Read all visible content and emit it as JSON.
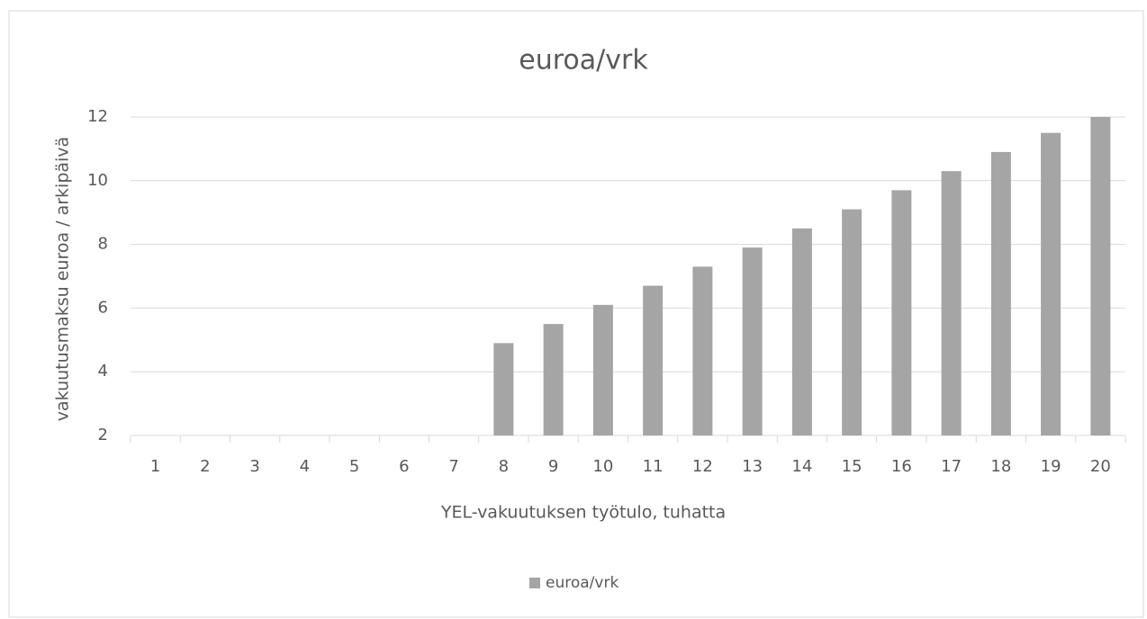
{
  "chart_data": {
    "type": "bar",
    "title": "euroa/vrk",
    "x_label": "YEL-vakuutuksen työtulo, tuhatta",
    "y_label": "vakuutusmaksu euroa / arkipäivä",
    "categories": [
      "1",
      "2",
      "3",
      "4",
      "5",
      "6",
      "7",
      "8",
      "9",
      "10",
      "11",
      "12",
      "13",
      "14",
      "15",
      "16",
      "17",
      "18",
      "19",
      "20"
    ],
    "series": [
      {
        "name": "euroa/vrk",
        "color": "#a5a5a5",
        "values": [
          null,
          null,
          null,
          null,
          null,
          null,
          null,
          4.9,
          5.5,
          6.1,
          6.7,
          7.3,
          7.9,
          8.5,
          9.1,
          9.7,
          10.3,
          10.9,
          11.5,
          12
        ]
      }
    ],
    "ylim": [
      2,
      12
    ],
    "yticks": [
      2,
      4,
      6,
      8,
      10,
      12
    ],
    "grid": true,
    "legend": "bottom"
  }
}
